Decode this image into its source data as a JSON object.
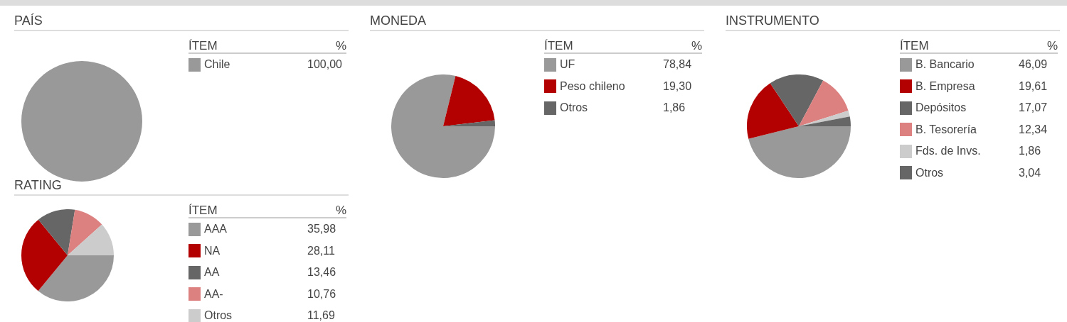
{
  "chart_data": [
    {
      "type": "pie",
      "title": "PAÍS",
      "legend_title": "ÍTEM",
      "annotations": [
        "%"
      ],
      "legend": "right",
      "categories": [
        "Chile"
      ],
      "values": [
        100
      ],
      "value_labels": [
        "100,00"
      ],
      "colors": [
        "#999999"
      ]
    },
    {
      "type": "pie",
      "title": "MONEDA",
      "legend_title": "ÍTEM",
      "annotations": [
        "%"
      ],
      "legend": "right",
      "categories": [
        "UF",
        "Peso chileno",
        "Otros"
      ],
      "values": [
        78.84,
        19.3,
        1.86
      ],
      "value_labels": [
        "78,84",
        "19,30",
        "1,86"
      ],
      "colors": [
        "#999999",
        "#b30000",
        "#666666"
      ]
    },
    {
      "type": "pie",
      "title": "INSTRUMENTO",
      "legend_title": "ÍTEM",
      "annotations": [
        "%"
      ],
      "legend": "right",
      "categories": [
        "B. Bancario",
        "B. Empresa",
        "Depósitos",
        "B. Tesorería",
        "Fds. de Invs.",
        "Otros"
      ],
      "values": [
        46.09,
        19.61,
        17.07,
        12.34,
        1.86,
        3.04
      ],
      "value_labels": [
        "46,09",
        "19,61",
        "17,07",
        "12,34",
        "1,86",
        "3,04"
      ],
      "colors": [
        "#999999",
        "#b30000",
        "#666666",
        "#dc8080",
        "#cccccc",
        "#666666"
      ]
    },
    {
      "type": "pie",
      "title": "RATING",
      "legend_title": "ÍTEM",
      "annotations": [
        "%"
      ],
      "legend": "right",
      "categories": [
        "AAA",
        "NA",
        "AA",
        "AA-",
        "Otros"
      ],
      "values": [
        35.98,
        28.11,
        13.46,
        10.76,
        11.69
      ],
      "value_labels": [
        "35,98",
        "28,11",
        "13,46",
        "10,76",
        "11,69"
      ],
      "colors": [
        "#999999",
        "#b30000",
        "#666666",
        "#dc8080",
        "#cccccc"
      ]
    }
  ]
}
